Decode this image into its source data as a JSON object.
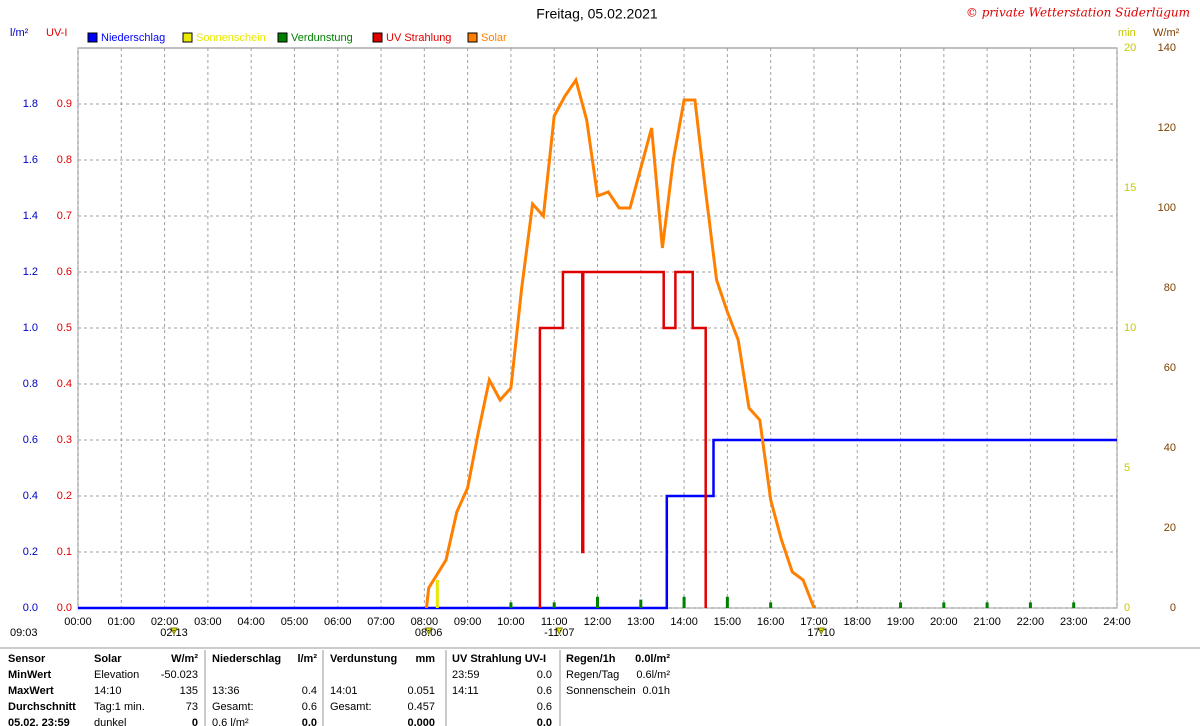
{
  "chart_data": {
    "type": "line",
    "title": "Freitag, 05.02.2021",
    "credit": "© private Wetterstation Süderlügum",
    "y_label": "l/m²",
    "y2_label": "UV-I",
    "y3_label": "min",
    "y4_label": "W/m²",
    "xlim": [
      0,
      24
    ],
    "xticks": [
      {
        "value": 0,
        "label": "00:00"
      },
      {
        "value": 1,
        "label": "01:00"
      },
      {
        "value": 2,
        "label": "02:00"
      },
      {
        "value": 3,
        "label": "03:00"
      },
      {
        "value": 4,
        "label": "04:00"
      },
      {
        "value": 5,
        "label": "05:00"
      },
      {
        "value": 6,
        "label": "06:00"
      },
      {
        "value": 7,
        "label": "07:00"
      },
      {
        "value": 8,
        "label": "08:00"
      },
      {
        "value": 9,
        "label": "09:00"
      },
      {
        "value": 10,
        "label": "10:00"
      },
      {
        "value": 11,
        "label": "11:00"
      },
      {
        "value": 12,
        "label": "12:00"
      },
      {
        "value": 13,
        "label": "13:00"
      },
      {
        "value": 14,
        "label": "14:00"
      },
      {
        "value": 15,
        "label": "15:00"
      },
      {
        "value": 16,
        "label": "16:00"
      },
      {
        "value": 17,
        "label": "17:00"
      },
      {
        "value": 18,
        "label": "18:00"
      },
      {
        "value": 19,
        "label": "19:00"
      },
      {
        "value": 20,
        "label": "20:00"
      },
      {
        "value": 21,
        "label": "21:00"
      },
      {
        "value": 22,
        "label": "22:00"
      },
      {
        "value": 23,
        "label": "23:00"
      },
      {
        "value": 24,
        "label": "24:00"
      }
    ],
    "ylim": [
      0,
      2
    ],
    "yticks": [
      {
        "value": 0,
        "label": "0.0"
      },
      0.2,
      0.4,
      0.6,
      0.8,
      {
        "value": 1,
        "label": "1.0"
      },
      1.2,
      1.4,
      1.6,
      1.8
    ],
    "y2lim": [
      0,
      1
    ],
    "y2ticks": [
      {
        "value": 0,
        "label": "0.0"
      },
      0.1,
      0.2,
      0.3,
      0.4,
      0.5,
      0.6,
      0.7,
      0.8,
      0.9
    ],
    "y3lim": [
      0,
      20
    ],
    "y3ticks": [
      0,
      5,
      10,
      15,
      20
    ],
    "y4lim": [
      0,
      140
    ],
    "y4ticks": [
      0,
      20,
      40,
      60,
      80,
      100,
      120,
      140
    ],
    "grid": true,
    "series": [
      {
        "name": "Niederschlag",
        "color": "#0000ff",
        "axis": "y",
        "style": "line",
        "x": [
          0,
          13.6,
          13.6,
          14.68,
          14.68,
          24
        ],
        "values": [
          0,
          0,
          0.4,
          0.4,
          0.6,
          0.6
        ]
      },
      {
        "name": "Sonnenschein",
        "color": "#e8e800",
        "axis": "y3",
        "style": "bar",
        "x": [
          8.3
        ],
        "values": [
          1
        ]
      },
      {
        "name": "Verdunstung",
        "color": "#008000",
        "axis": "y",
        "style": "bar",
        "x": [
          10,
          11,
          12,
          13,
          14,
          15,
          16,
          17,
          19,
          20,
          21,
          22,
          23
        ],
        "values": [
          0.02,
          0.02,
          0.04,
          0.03,
          0.04,
          0.04,
          0.02,
          0.01,
          0.02,
          0.02,
          0.02,
          0.02,
          0.02
        ]
      },
      {
        "name": "UV Strahlung",
        "color": "#e00000",
        "axis": "y2",
        "style": "line",
        "x": [
          10.67,
          10.67,
          11.2,
          11.2,
          11.65,
          11.65,
          11.67,
          11.67,
          13.53,
          13.53,
          13.8,
          13.8,
          14.2,
          14.2,
          14.5,
          14.5
        ],
        "values": [
          0,
          0.5,
          0.5,
          0.6,
          0.6,
          0.1,
          0.1,
          0.6,
          0.6,
          0.5,
          0.5,
          0.6,
          0.6,
          0.5,
          0.5,
          0
        ]
      },
      {
        "name": "Solar",
        "color": "#ff8000",
        "axis": "y4",
        "style": "line",
        "x": [
          8.05,
          8.1,
          8.5,
          8.75,
          9,
          9.25,
          9.5,
          9.75,
          10,
          10.25,
          10.5,
          10.75,
          11,
          11.25,
          11.5,
          11.75,
          12,
          12.25,
          12.5,
          12.75,
          13,
          13.25,
          13.5,
          13.75,
          14,
          14.25,
          14.5,
          14.75,
          15,
          15.25,
          15.5,
          15.75,
          16,
          16.25,
          16.5,
          16.75,
          17
        ],
        "values": [
          0,
          5,
          12,
          24,
          30,
          44,
          57,
          52,
          55,
          80,
          101,
          98,
          123,
          128,
          132,
          122,
          103,
          104,
          100,
          100,
          110,
          120,
          90,
          112,
          127,
          127,
          104,
          82,
          74,
          67,
          50,
          47,
          27,
          17,
          9,
          7,
          0
        ]
      }
    ],
    "day_length": "09:03",
    "markers": [
      {
        "value": 2.217,
        "label": "02:13"
      },
      {
        "value": 8.1,
        "label": "08:06"
      },
      {
        "value": 11.117,
        "label": "-11:07"
      },
      {
        "value": 17.167,
        "label": "17:10"
      }
    ]
  },
  "stats": {
    "rows": [
      {
        "label": "Sensor",
        "solar": "Solar",
        "solar_v": "W/m²",
        "rain": "Niederschlag",
        "rain_v": "l/m²",
        "evap": "Verdunstung",
        "evap_v": "mm",
        "uv": "UV Strahlung UV-I",
        "misc": "Regen/1h",
        "misc_v": "0.0l/m²"
      },
      {
        "label": "MinWert",
        "solar": "Elevation",
        "solar_v": "-50.023",
        "uv": "23:59",
        "uv_v": "0.0",
        "misc": "Regen/Tag",
        "misc_v": "0.6l/m²"
      },
      {
        "label": "MaxWert",
        "solar": "14:10",
        "solar_v": "135",
        "rain": "13:36",
        "rain_v": "0.4",
        "evap": "14:01",
        "evap_v": "0.051",
        "uv": "14:11",
        "uv_v": "0.6",
        "misc": "Sonnenschein",
        "misc_v": "0.01h"
      },
      {
        "label": "Durchschnitt",
        "solar": "Tag:1 min.",
        "solar_v": "73",
        "rain": "Gesamt:",
        "rain_v": "0.6",
        "evap": "Gesamt:",
        "evap_v": "0.457",
        "uv_v": "0.6"
      },
      {
        "label": "05.02. 23:59",
        "solar": "dunkel",
        "solar_v": "0",
        "rain": "0.6 l/m²",
        "rain_v": "0.0",
        "evap_v": "0.000",
        "uv_v": "0.0"
      }
    ]
  }
}
